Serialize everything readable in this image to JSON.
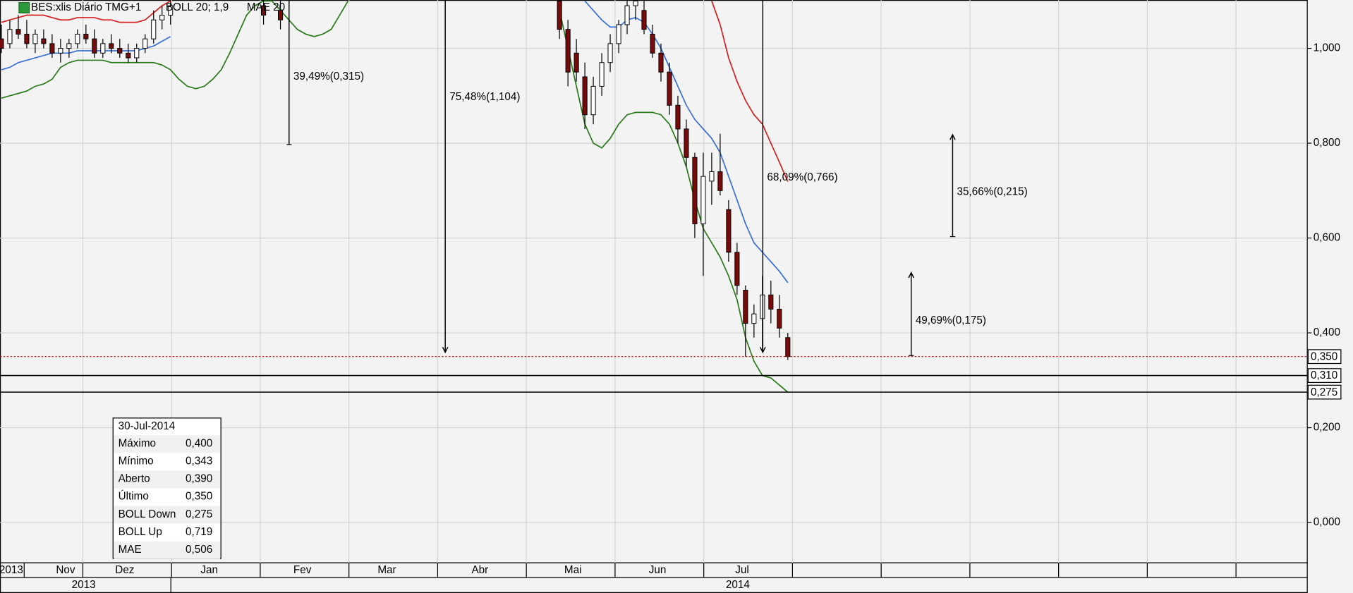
{
  "chart_data": {
    "type": "candlestick",
    "title": "BES:xlis Diário TMG+1",
    "indicators": [
      {
        "label": "BOLL 20; 1,9",
        "color": "#d42020"
      },
      {
        "label": "MAE 20",
        "color": "#3a6fd8"
      }
    ],
    "categories": [
      "2013",
      null,
      null,
      "Nov",
      null,
      null,
      null,
      null,
      null,
      null,
      "Dez",
      null,
      null,
      null,
      null,
      null,
      null,
      null,
      null,
      null,
      "Jan",
      null,
      null,
      null,
      null,
      null,
      null,
      null,
      null,
      null,
      null,
      "Fev",
      null,
      null,
      null,
      null,
      null,
      null,
      null,
      null,
      null,
      "Mar",
      null,
      null,
      null,
      null,
      null,
      null,
      null,
      null,
      null,
      null,
      "Abr",
      null,
      null,
      null,
      null,
      null,
      null,
      null,
      null,
      null,
      null,
      "Mai",
      null,
      null,
      null,
      null,
      null,
      null,
      null,
      null,
      null,
      "Jun",
      null,
      null,
      null,
      null,
      null,
      null,
      null,
      null,
      null,
      "Jul",
      null,
      null,
      null,
      null,
      null,
      null,
      null,
      null,
      null,
      null
    ],
    "open": [
      1.02,
      1.01,
      1.04,
      1.03,
      1.01,
      1.02,
      1.01,
      0.99,
      1.0,
      1.01,
      1.03,
      1.02,
      0.99,
      1.01,
      1.0,
      0.99,
      0.98,
      1.0,
      1.02,
      1.06,
      1.07,
      null,
      null,
      null,
      null,
      null,
      null,
      null,
      null,
      null,
      null,
      1.09,
      null,
      1.08,
      null,
      null,
      null,
      null,
      null,
      null,
      null,
      null,
      null,
      null,
      null,
      null,
      null,
      null,
      null,
      null,
      null,
      null,
      null,
      null,
      null,
      null,
      null,
      null,
      null,
      null,
      null,
      null,
      null,
      null,
      null,
      null,
      1.1,
      1.04,
      0.99,
      0.94,
      0.86,
      0.92,
      0.97,
      1.01,
      1.05,
      1.09,
      1.08,
      1.03,
      0.99,
      0.95,
      0.88,
      0.83,
      0.77,
      0.63,
      0.72,
      0.74,
      0.66,
      0.57,
      0.49,
      0.42,
      0.43,
      0.48,
      0.45,
      0.39
    ],
    "high": [
      1.05,
      1.06,
      1.07,
      1.06,
      1.04,
      1.04,
      1.03,
      1.02,
      1.02,
      1.04,
      1.05,
      1.04,
      1.02,
      1.03,
      1.02,
      1.01,
      1.01,
      1.03,
      1.08,
      1.09,
      1.1,
      null,
      null,
      null,
      null,
      null,
      null,
      null,
      null,
      null,
      null,
      1.11,
      null,
      1.1,
      null,
      null,
      null,
      null,
      null,
      null,
      null,
      null,
      null,
      null,
      null,
      null,
      null,
      null,
      null,
      null,
      null,
      null,
      null,
      null,
      null,
      null,
      null,
      null,
      null,
      null,
      null,
      null,
      null,
      null,
      null,
      null,
      1.11,
      1.06,
      1.02,
      0.97,
      0.94,
      0.99,
      1.03,
      1.06,
      1.1,
      1.11,
      1.1,
      1.05,
      1.01,
      0.97,
      0.9,
      0.85,
      0.78,
      0.78,
      0.78,
      0.82,
      0.68,
      0.59,
      0.5,
      0.46,
      0.52,
      0.51,
      0.48,
      0.4
    ],
    "low": [
      0.99,
      1.0,
      1.02,
      1.0,
      0.99,
      1.0,
      0.98,
      0.97,
      0.98,
      1.0,
      1.01,
      0.98,
      0.98,
      0.99,
      0.98,
      0.97,
      0.97,
      0.99,
      1.01,
      1.04,
      1.05,
      null,
      null,
      null,
      null,
      null,
      null,
      null,
      null,
      null,
      null,
      1.05,
      null,
      1.04,
      null,
      null,
      null,
      null,
      null,
      null,
      null,
      null,
      null,
      null,
      null,
      null,
      null,
      null,
      null,
      null,
      null,
      null,
      null,
      null,
      null,
      null,
      null,
      null,
      null,
      null,
      null,
      null,
      null,
      null,
      null,
      null,
      1.02,
      0.92,
      0.93,
      0.83,
      0.84,
      0.9,
      0.95,
      0.99,
      1.03,
      1.06,
      1.03,
      0.98,
      0.93,
      0.86,
      0.8,
      0.75,
      0.6,
      0.52,
      0.67,
      0.69,
      0.55,
      0.48,
      0.35,
      0.39,
      0.36,
      0.42,
      0.39,
      0.343
    ],
    "close": [
      1.0,
      1.04,
      1.03,
      1.01,
      1.03,
      1.01,
      0.99,
      1.0,
      1.01,
      1.03,
      1.02,
      0.99,
      1.01,
      1.0,
      0.99,
      0.98,
      1.0,
      1.02,
      1.06,
      1.07,
      1.09,
      null,
      null,
      null,
      null,
      null,
      null,
      null,
      null,
      null,
      null,
      1.07,
      null,
      1.06,
      null,
      null,
      null,
      null,
      null,
      null,
      null,
      null,
      null,
      null,
      null,
      null,
      null,
      null,
      null,
      null,
      null,
      null,
      null,
      null,
      null,
      null,
      null,
      null,
      null,
      null,
      null,
      null,
      null,
      null,
      null,
      null,
      1.04,
      0.95,
      0.95,
      0.86,
      0.92,
      0.97,
      1.01,
      1.05,
      1.09,
      1.1,
      1.04,
      0.99,
      0.95,
      0.88,
      0.83,
      0.77,
      0.63,
      0.73,
      0.74,
      0.7,
      0.57,
      0.5,
      0.42,
      0.44,
      0.48,
      0.45,
      0.41,
      0.35
    ],
    "up_color": "#ffffff",
    "down_color": "#7a0a0a",
    "series": [
      {
        "name": "BOLL Up",
        "color": "#d42020",
        "values": [
          1.055,
          1.06,
          1.065,
          1.07,
          1.07,
          1.07,
          1.065,
          1.06,
          1.06,
          1.065,
          1.065,
          1.065,
          1.06,
          1.06,
          1.055,
          1.055,
          1.055,
          1.06,
          1.075,
          1.09,
          1.1,
          null,
          null,
          null,
          null,
          null,
          null,
          null,
          null,
          null,
          null,
          null,
          null,
          null,
          null,
          null,
          null,
          null,
          null,
          null,
          null,
          null,
          null,
          null,
          null,
          null,
          null,
          null,
          null,
          null,
          null,
          null,
          null,
          null,
          null,
          null,
          null,
          null,
          null,
          null,
          null,
          null,
          null,
          null,
          null,
          null,
          null,
          null,
          null,
          null,
          null,
          null,
          null,
          null,
          null,
          null,
          null,
          null,
          null,
          null,
          null,
          null,
          null,
          null,
          1.1,
          1.05,
          0.98,
          0.93,
          0.89,
          0.86,
          0.84,
          0.8,
          0.76,
          0.719
        ]
      },
      {
        "name": "BOLL Down",
        "color": "#2a7a1a",
        "values": [
          0.895,
          0.9,
          0.905,
          0.91,
          0.92,
          0.925,
          0.935,
          0.96,
          0.97,
          0.975,
          0.975,
          0.975,
          0.975,
          0.97,
          0.97,
          0.97,
          0.97,
          0.97,
          0.97,
          0.965,
          0.955,
          0.935,
          0.92,
          0.915,
          0.92,
          0.935,
          0.955,
          0.99,
          1.03,
          1.07,
          1.09,
          1.1,
          1.1,
          1.08,
          1.06,
          1.04,
          1.03,
          1.025,
          1.03,
          1.04,
          1.07,
          1.1,
          null,
          null,
          null,
          null,
          null,
          null,
          null,
          null,
          null,
          null,
          null,
          null,
          null,
          null,
          null,
          null,
          null,
          null,
          null,
          null,
          null,
          null,
          null,
          null,
          1.08,
          1.0,
          0.92,
          0.84,
          0.8,
          0.79,
          0.81,
          0.84,
          0.86,
          0.865,
          0.865,
          0.865,
          0.86,
          0.84,
          0.8,
          0.75,
          0.68,
          0.62,
          0.59,
          0.56,
          0.52,
          0.47,
          0.39,
          0.34,
          0.31,
          0.305,
          0.29,
          0.275
        ]
      },
      {
        "name": "MAE",
        "color": "#3a6fd8",
        "values": [
          0.955,
          0.96,
          0.97,
          0.975,
          0.98,
          0.985,
          0.99,
          0.99,
          0.99,
          0.995,
          0.995,
          0.995,
          0.995,
          0.995,
          0.995,
          0.995,
          0.995,
          1.0,
          1.005,
          1.015,
          1.025,
          null,
          null,
          null,
          null,
          null,
          null,
          null,
          null,
          null,
          null,
          null,
          null,
          null,
          null,
          null,
          null,
          null,
          null,
          null,
          null,
          null,
          null,
          null,
          null,
          null,
          null,
          null,
          null,
          null,
          null,
          null,
          null,
          null,
          null,
          null,
          null,
          null,
          null,
          null,
          null,
          null,
          null,
          null,
          null,
          null,
          null,
          null,
          null,
          1.1,
          1.08,
          1.06,
          1.045,
          1.045,
          1.06,
          1.065,
          1.055,
          1.03,
          1.0,
          0.96,
          0.92,
          0.88,
          0.85,
          0.83,
          0.81,
          0.78,
          0.73,
          0.68,
          0.63,
          0.59,
          0.57,
          0.55,
          0.53,
          0.506
        ]
      }
    ],
    "ylim": [
      -0.085,
      1.102
    ],
    "yticks": [
      {
        "value": 0,
        "label": "0,000"
      },
      {
        "value": 0.2,
        "label": "0,200"
      },
      {
        "value": 0.4,
        "label": "0,400"
      },
      {
        "value": 0.6,
        "label": "0,600"
      },
      {
        "value": 0.8,
        "label": "0,800"
      },
      {
        "value": 1,
        "label": "1,000"
      }
    ],
    "grid": true,
    "levels": [
      {
        "value": 0.35,
        "label": "0,350",
        "line_color": "#cc0000",
        "text_color": "#000000",
        "dotted": true
      },
      {
        "value": 0.31,
        "label": "0,310",
        "line_color": "#000000",
        "text_color": "#cc0000",
        "dotted": false
      },
      {
        "value": 0.275,
        "label": "0,275",
        "line_color": "#000000",
        "text_color": "#cc0000",
        "dotted": false
      }
    ],
    "measures": [
      {
        "label": "39,49%(0,315)",
        "from": 0.797,
        "to": 1.112
      },
      {
        "label": "75,48%(1,104)",
        "from": 1.463,
        "to": 0.359
      },
      {
        "label": "68,09%(0,766)",
        "from": 1.125,
        "to": 0.359
      },
      {
        "label": "35,66%(0,215)",
        "from": 0.603,
        "to": 0.818
      },
      {
        "label": "49,69%(0,175)",
        "from": 0.352,
        "to": 0.527
      }
    ],
    "years": [
      "2013",
      "2014"
    ],
    "info_box": {
      "date": "30-Jul-2014",
      "rows": [
        {
          "label": "Máximo",
          "value": "0,400",
          "color": "#000000"
        },
        {
          "label": "Mínimo",
          "value": "0,343",
          "color": "#000000"
        },
        {
          "label": "Aberto",
          "value": "0,390",
          "color": "#000000"
        },
        {
          "label": "Último",
          "value": "0,350",
          "color": "#000000"
        },
        {
          "label": "BOLL Down",
          "value": "0,275",
          "color": "#2a7a1a"
        },
        {
          "label": "BOLL Up",
          "value": "0,719",
          "color": "#d42020"
        },
        {
          "label": "MAE",
          "value": "0,506",
          "color": "#3a6fd8"
        }
      ]
    }
  }
}
